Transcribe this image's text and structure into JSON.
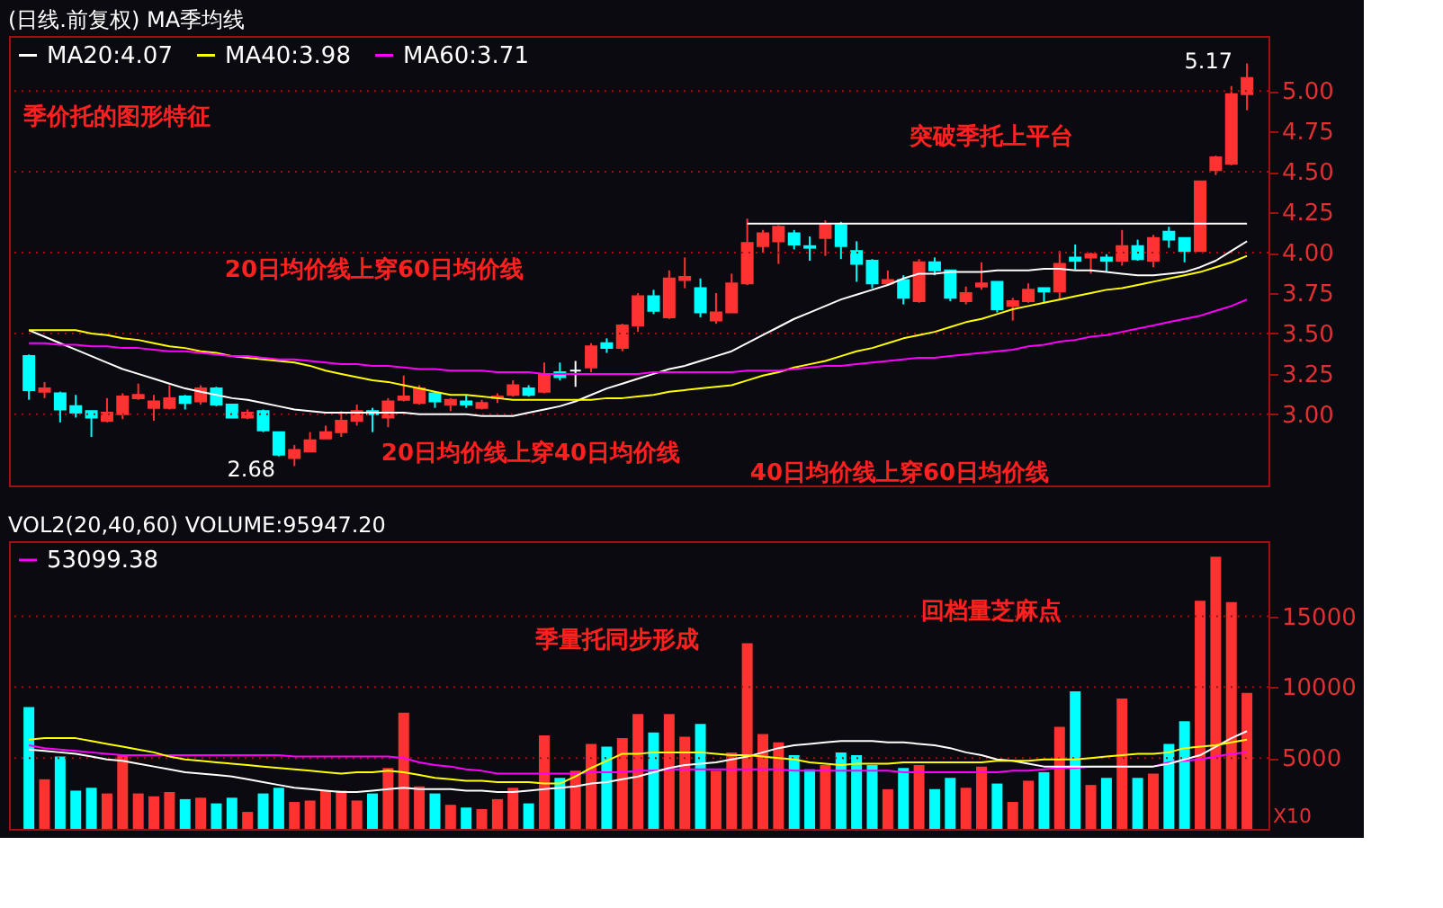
{
  "chart_data": [
    {
      "type": "candlestick",
      "title": "(日线.前复权) MA季均线",
      "categories": [
        null,
        null,
        null,
        null,
        null,
        null,
        null,
        null,
        null,
        null,
        null,
        null,
        null,
        null,
        null,
        null,
        null,
        null,
        null,
        null,
        null,
        null,
        null,
        null,
        null,
        null,
        null,
        null,
        null,
        null,
        null,
        null,
        null,
        null,
        null,
        null,
        null,
        null,
        null,
        null,
        null,
        null,
        null,
        null,
        null,
        null,
        null,
        null,
        null,
        null,
        null,
        null,
        null,
        null,
        null,
        null,
        null,
        null,
        null,
        null,
        null,
        null,
        null,
        null,
        null,
        null,
        null,
        null,
        null,
        null,
        null,
        null,
        null,
        null,
        null,
        null,
        null,
        null,
        null
      ],
      "ohlc": [
        [
          3.36,
          3.37,
          3.09,
          3.15
        ],
        [
          3.14,
          3.2,
          3.1,
          3.16
        ],
        [
          3.13,
          3.14,
          2.95,
          3.03
        ],
        [
          3.05,
          3.12,
          2.98,
          3.01
        ],
        [
          3.02,
          3.02,
          2.86,
          2.98
        ],
        [
          2.96,
          3.1,
          2.95,
          3.01
        ],
        [
          3.0,
          3.13,
          2.97,
          3.11
        ],
        [
          3.1,
          3.19,
          3.09,
          3.12
        ],
        [
          3.04,
          3.12,
          2.96,
          3.08
        ],
        [
          3.04,
          3.18,
          3.03,
          3.1
        ],
        [
          3.11,
          3.12,
          3.03,
          3.07
        ],
        [
          3.08,
          3.18,
          3.06,
          3.16
        ],
        [
          3.16,
          3.17,
          3.05,
          3.06
        ],
        [
          3.06,
          3.06,
          2.98,
          2.98
        ],
        [
          2.98,
          3.03,
          2.97,
          3.01
        ],
        [
          3.02,
          3.03,
          2.89,
          2.9
        ],
        [
          2.89,
          2.89,
          2.74,
          2.75
        ],
        [
          2.73,
          2.81,
          2.68,
          2.78
        ],
        [
          2.77,
          2.89,
          2.77,
          2.84
        ],
        [
          2.85,
          2.93,
          2.85,
          2.89
        ],
        [
          2.89,
          3.02,
          2.86,
          2.96
        ],
        [
          2.96,
          3.06,
          2.93,
          3.02
        ],
        [
          3.02,
          3.04,
          2.89,
          3.0
        ],
        [
          2.98,
          3.1,
          2.92,
          3.08
        ],
        [
          3.09,
          3.24,
          3.08,
          3.11
        ],
        [
          3.07,
          3.18,
          3.06,
          3.16
        ],
        [
          3.13,
          3.14,
          3.04,
          3.08
        ],
        [
          3.06,
          3.1,
          3.02,
          3.09
        ],
        [
          3.08,
          3.12,
          3.04,
          3.06
        ],
        [
          3.04,
          3.09,
          3.03,
          3.07
        ],
        [
          3.1,
          3.13,
          3.07,
          3.11
        ],
        [
          3.12,
          3.21,
          3.11,
          3.18
        ],
        [
          3.16,
          3.18,
          3.11,
          3.12
        ],
        [
          3.14,
          3.32,
          3.13,
          3.25
        ],
        [
          3.26,
          3.32,
          3.21,
          3.23
        ],
        [
          3.27,
          3.33,
          3.17,
          3.27
        ],
        [
          3.29,
          3.44,
          3.26,
          3.42
        ],
        [
          3.44,
          3.47,
          3.38,
          3.41
        ],
        [
          3.41,
          3.56,
          3.39,
          3.55
        ],
        [
          3.55,
          3.75,
          3.51,
          3.73
        ],
        [
          3.73,
          3.77,
          3.62,
          3.64
        ],
        [
          3.6,
          3.89,
          3.59,
          3.84
        ],
        [
          3.83,
          3.97,
          3.78,
          3.85
        ],
        [
          3.78,
          3.84,
          3.6,
          3.63
        ],
        [
          3.58,
          3.75,
          3.56,
          3.63
        ],
        [
          3.63,
          3.87,
          3.63,
          3.81
        ],
        [
          3.81,
          4.21,
          3.8,
          4.06
        ],
        [
          4.04,
          4.14,
          4.0,
          4.12
        ],
        [
          4.07,
          4.17,
          3.93,
          4.16
        ],
        [
          4.12,
          4.14,
          4.02,
          4.05
        ],
        [
          4.04,
          4.1,
          3.95,
          4.03
        ],
        [
          4.09,
          4.2,
          3.98,
          4.17
        ],
        [
          4.17,
          4.19,
          3.96,
          4.04
        ],
        [
          4.01,
          4.07,
          3.82,
          3.93
        ],
        [
          3.95,
          3.96,
          3.78,
          3.81
        ],
        [
          3.81,
          3.89,
          3.8,
          3.83
        ],
        [
          3.83,
          3.86,
          3.68,
          3.72
        ],
        [
          3.7,
          3.96,
          3.69,
          3.94
        ],
        [
          3.94,
          3.97,
          3.86,
          3.89
        ],
        [
          3.89,
          3.89,
          3.7,
          3.72
        ],
        [
          3.7,
          3.79,
          3.68,
          3.75
        ],
        [
          3.79,
          3.94,
          3.77,
          3.81
        ],
        [
          3.82,
          3.82,
          3.63,
          3.65
        ],
        [
          3.67,
          3.72,
          3.58,
          3.7
        ],
        [
          3.7,
          3.81,
          3.69,
          3.77
        ],
        [
          3.78,
          3.78,
          3.69,
          3.76
        ],
        [
          3.76,
          4.01,
          3.71,
          3.93
        ],
        [
          3.97,
          4.05,
          3.89,
          3.95
        ],
        [
          3.97,
          4.0,
          3.87,
          3.99
        ],
        [
          3.97,
          3.99,
          3.88,
          3.95
        ],
        [
          3.95,
          4.14,
          3.92,
          4.04
        ],
        [
          4.04,
          4.08,
          3.95,
          3.96
        ],
        [
          3.95,
          4.11,
          3.91,
          4.09
        ],
        [
          4.13,
          4.16,
          4.03,
          4.08
        ],
        [
          4.09,
          4.09,
          3.94,
          4.01
        ],
        [
          4.01,
          4.44,
          4.01,
          4.44
        ],
        [
          4.51,
          4.6,
          4.48,
          4.59
        ],
        [
          4.55,
          5.03,
          4.54,
          4.98
        ],
        [
          4.98,
          5.17,
          4.88,
          5.08
        ]
      ],
      "colors": [
        "#00ffff",
        "#ff3232",
        "#00ffff",
        "#00ffff",
        "#00ffff",
        "#ff3232",
        "#ff3232",
        "#ff3232",
        "#ff3232",
        "#ff3232",
        "#00ffff",
        "#ff3232",
        "#00ffff",
        "#00ffff",
        "#ff3232",
        "#00ffff",
        "#00ffff",
        "#ff3232",
        "#ff3232",
        "#ff3232",
        "#ff3232",
        "#ff3232",
        "#00ffff",
        "#ff3232",
        "#ff3232",
        "#ff3232",
        "#00ffff",
        "#ff3232",
        "#00ffff",
        "#ff3232",
        "#ff3232",
        "#ff3232",
        "#00ffff",
        "#ff3232",
        "#00ffff",
        "#ffffff",
        "#ff3232",
        "#00ffff",
        "#ff3232",
        "#ff3232",
        "#00ffff",
        "#ff3232",
        "#ff3232",
        "#00ffff",
        "#ff3232",
        "#ff3232",
        "#ff3232",
        "#ff3232",
        "#ff3232",
        "#00ffff",
        "#00ffff",
        "#ff3232",
        "#00ffff",
        "#00ffff",
        "#00ffff",
        "#ff3232",
        "#00ffff",
        "#ff3232",
        "#00ffff",
        "#00ffff",
        "#ff3232",
        "#ff3232",
        "#00ffff",
        "#ff3232",
        "#ff3232",
        "#00ffff",
        "#ff3232",
        "#00ffff",
        "#ff3232",
        "#00ffff",
        "#ff3232",
        "#00ffff",
        "#ff3232",
        "#00ffff",
        "#00ffff",
        "#ff3232",
        "#ff3232",
        "#ff3232",
        "#ff3232"
      ],
      "series": [
        {
          "name": "MA20:4.07",
          "type": "line",
          "color": "#ffffff",
          "values": [
            3.52,
            3.48,
            3.44,
            3.4,
            3.36,
            3.32,
            3.28,
            3.25,
            3.22,
            3.19,
            3.16,
            3.14,
            3.12,
            3.1,
            3.09,
            3.07,
            3.05,
            3.03,
            3.02,
            3.01,
            3.01,
            3.01,
            3.01,
            3.01,
            3.01,
            3.0,
            3.0,
            3.0,
            3.0,
            2.99,
            2.99,
            2.99,
            3.01,
            3.03,
            3.05,
            3.08,
            3.12,
            3.16,
            3.19,
            3.22,
            3.25,
            3.28,
            3.3,
            3.33,
            3.36,
            3.39,
            3.44,
            3.49,
            3.54,
            3.59,
            3.63,
            3.67,
            3.71,
            3.74,
            3.77,
            3.8,
            3.84,
            3.87,
            3.87,
            3.88,
            3.88,
            3.88,
            3.89,
            3.89,
            3.89,
            3.9,
            3.9,
            3.89,
            3.89,
            3.88,
            3.87,
            3.86,
            3.86,
            3.87,
            3.88,
            3.91,
            3.95,
            4.01,
            4.07
          ]
        },
        {
          "name": "MA40:3.98",
          "type": "line",
          "color": "#ffff00",
          "values": [
            3.52,
            3.52,
            3.52,
            3.52,
            3.5,
            3.49,
            3.47,
            3.46,
            3.44,
            3.42,
            3.41,
            3.39,
            3.38,
            3.36,
            3.35,
            3.34,
            3.33,
            3.32,
            3.3,
            3.27,
            3.25,
            3.23,
            3.21,
            3.2,
            3.18,
            3.16,
            3.14,
            3.12,
            3.12,
            3.11,
            3.1,
            3.09,
            3.09,
            3.09,
            3.09,
            3.09,
            3.09,
            3.1,
            3.1,
            3.11,
            3.12,
            3.14,
            3.15,
            3.16,
            3.17,
            3.18,
            3.21,
            3.24,
            3.26,
            3.29,
            3.31,
            3.33,
            3.36,
            3.39,
            3.41,
            3.44,
            3.47,
            3.49,
            3.51,
            3.54,
            3.57,
            3.59,
            3.62,
            3.65,
            3.67,
            3.69,
            3.71,
            3.73,
            3.75,
            3.77,
            3.78,
            3.8,
            3.82,
            3.84,
            3.86,
            3.88,
            3.91,
            3.94,
            3.98
          ]
        },
        {
          "name": "MA60:3.71",
          "type": "line",
          "color": "#ff00ff",
          "values": [
            3.44,
            3.44,
            3.43,
            3.43,
            3.42,
            3.42,
            3.41,
            3.41,
            3.4,
            3.39,
            3.39,
            3.38,
            3.37,
            3.36,
            3.36,
            3.35,
            3.34,
            3.34,
            3.33,
            3.32,
            3.31,
            3.31,
            3.3,
            3.3,
            3.29,
            3.28,
            3.28,
            3.27,
            3.27,
            3.27,
            3.26,
            3.26,
            3.26,
            3.25,
            3.25,
            3.25,
            3.25,
            3.25,
            3.25,
            3.25,
            3.26,
            3.26,
            3.26,
            3.26,
            3.26,
            3.26,
            3.27,
            3.27,
            3.27,
            3.28,
            3.29,
            3.3,
            3.3,
            3.31,
            3.32,
            3.33,
            3.34,
            3.35,
            3.35,
            3.36,
            3.37,
            3.38,
            3.39,
            3.4,
            3.42,
            3.43,
            3.45,
            3.46,
            3.48,
            3.49,
            3.51,
            3.53,
            3.55,
            3.57,
            3.59,
            3.61,
            3.64,
            3.67,
            3.71
          ]
        },
        {
          "type": "line",
          "color": "#ffffff",
          "values": [
            null,
            null,
            null,
            null,
            null,
            null,
            null,
            null,
            null,
            null,
            null,
            null,
            null,
            null,
            null,
            null,
            null,
            null,
            null,
            null,
            null,
            null,
            null,
            null,
            null,
            null,
            null,
            null,
            null,
            null,
            null,
            null,
            null,
            null,
            null,
            null,
            null,
            null,
            null,
            null,
            null,
            null,
            null,
            null,
            null,
            null,
            4.18,
            4.18,
            4.18,
            4.18,
            4.18,
            4.18,
            4.18,
            4.18,
            4.18,
            4.18,
            4.18,
            4.18,
            4.18,
            4.18,
            4.18,
            4.18,
            4.18,
            4.18,
            4.18,
            4.18,
            4.18,
            4.18,
            4.18,
            4.18,
            4.18,
            4.18,
            4.18,
            4.18,
            4.18,
            4.18,
            4.18,
            4.18,
            4.18
          ]
        }
      ],
      "ylim": [
        2.56,
        5.34
      ],
      "yticks": [
        {
          "value": 3.0,
          "label": "3.00"
        },
        {
          "value": 3.25,
          "label": "3.25"
        },
        {
          "value": 3.5,
          "label": "3.50"
        },
        {
          "value": 3.75,
          "label": "3.75"
        },
        {
          "value": 4.0,
          "label": "4.00"
        },
        {
          "value": 4.25,
          "label": "4.25"
        },
        {
          "value": 4.5,
          "label": "4.50"
        },
        {
          "value": 4.75,
          "label": "4.75"
        },
        {
          "value": 5.0,
          "label": "5.00"
        }
      ],
      "tick_labels": "y",
      "legend": "top left",
      "ref_lines": [
        {
          "axis": "y",
          "value": 3.0,
          "color": "#a01010",
          "line_style": "dotted"
        },
        {
          "axis": "y",
          "value": 3.5,
          "color": "#a01010",
          "line_style": "dotted"
        },
        {
          "axis": "y",
          "value": 4.0,
          "color": "#a01010",
          "line_style": "dotted"
        },
        {
          "axis": "y",
          "value": 4.5,
          "color": "#a01010",
          "line_style": "dotted"
        },
        {
          "axis": "y",
          "value": 5.0,
          "color": "#a01010",
          "line_style": "dotted"
        }
      ],
      "line_style": "solid",
      "annotations": [
        "季价托的图形特征",
        "20日均价线上穿60日均价线",
        "40日均价线上穿60日均价线",
        "20日均价线上穿40日均价线",
        "突破季托上平台",
        "2.68",
        "5.17"
      ]
    },
    {
      "type": "bar",
      "title": "VOL2(20,40,60) VOLUME:95947.20",
      "ylabel": "X10",
      "categories": [
        null,
        null,
        null,
        null,
        null,
        null,
        null,
        null,
        null,
        null,
        null,
        null,
        null,
        null,
        null,
        null,
        null,
        null,
        null,
        null,
        null,
        null,
        null,
        null,
        null,
        null,
        null,
        null,
        null,
        null,
        null,
        null,
        null,
        null,
        null,
        null,
        null,
        null,
        null,
        null,
        null,
        null,
        null,
        null,
        null,
        null,
        null,
        null,
        null,
        null,
        null,
        null,
        null,
        null,
        null,
        null,
        null,
        null,
        null,
        null,
        null,
        null,
        null,
        null,
        null,
        null,
        null,
        null,
        null,
        null,
        null,
        null,
        null,
        null,
        null,
        null,
        null,
        null,
        null
      ],
      "values": [
        8600,
        3500,
        5100,
        2700,
        2900,
        2500,
        5200,
        2500,
        2300,
        2600,
        2100,
        2200,
        1800,
        2200,
        1200,
        2500,
        2900,
        1900,
        2000,
        2700,
        2700,
        2000,
        2500,
        4300,
        8200,
        3000,
        2500,
        1700,
        1500,
        1400,
        2100,
        2900,
        1800,
        6600,
        3600,
        4100,
        6000,
        5800,
        6400,
        8100,
        6800,
        8100,
        6500,
        7400,
        4100,
        5400,
        13100,
        6700,
        6100,
        5200,
        4200,
        4500,
        5400,
        5200,
        4500,
        2800,
        4300,
        4500,
        2800,
        3600,
        2900,
        4400,
        3200,
        1900,
        3400,
        4000,
        7200,
        9700,
        3100,
        3600,
        9200,
        3600,
        3900,
        6000,
        7600,
        16100,
        19200,
        16000,
        9600
      ],
      "colors": [
        "#00ffff",
        "#ff3232",
        "#00ffff",
        "#00ffff",
        "#00ffff",
        "#ff3232",
        "#ff3232",
        "#ff3232",
        "#ff3232",
        "#ff3232",
        "#00ffff",
        "#ff3232",
        "#00ffff",
        "#00ffff",
        "#ff3232",
        "#00ffff",
        "#00ffff",
        "#ff3232",
        "#ff3232",
        "#ff3232",
        "#ff3232",
        "#ff3232",
        "#00ffff",
        "#ff3232",
        "#ff3232",
        "#ff3232",
        "#00ffff",
        "#ff3232",
        "#00ffff",
        "#ff3232",
        "#ff3232",
        "#ff3232",
        "#00ffff",
        "#ff3232",
        "#00ffff",
        "#ff3232",
        "#ff3232",
        "#00ffff",
        "#ff3232",
        "#ff3232",
        "#00ffff",
        "#ff3232",
        "#ff3232",
        "#00ffff",
        "#ff3232",
        "#ff3232",
        "#ff3232",
        "#ff3232",
        "#ff3232",
        "#00ffff",
        "#00ffff",
        "#ff3232",
        "#00ffff",
        "#00ffff",
        "#00ffff",
        "#ff3232",
        "#00ffff",
        "#ff3232",
        "#00ffff",
        "#00ffff",
        "#ff3232",
        "#ff3232",
        "#00ffff",
        "#ff3232",
        "#ff3232",
        "#00ffff",
        "#ff3232",
        "#00ffff",
        "#ff3232",
        "#00ffff",
        "#ff3232",
        "#00ffff",
        "#ff3232",
        "#00ffff",
        "#00ffff",
        "#ff3232",
        "#ff3232",
        "#ff3232",
        "#ff3232"
      ],
      "series": [
        {
          "type": "line",
          "color": "#ffffff",
          "values": [
            5600,
            5500,
            5400,
            5300,
            5100,
            4900,
            4800,
            4600,
            4400,
            4200,
            4000,
            3900,
            3800,
            3700,
            3500,
            3300,
            3100,
            2900,
            2800,
            2700,
            2600,
            2600,
            2700,
            2800,
            2900,
            2800,
            2800,
            2800,
            2700,
            2700,
            2600,
            2600,
            2700,
            2800,
            2900,
            3000,
            3200,
            3300,
            3500,
            3700,
            4000,
            4300,
            4500,
            4600,
            4700,
            4900,
            5100,
            5400,
            5700,
            5900,
            6000,
            6100,
            6200,
            6200,
            6200,
            6100,
            6100,
            6000,
            5900,
            5700,
            5400,
            5200,
            4900,
            4800,
            4600,
            4400,
            4400,
            4400,
            4400,
            4400,
            4400,
            4400,
            4400,
            4600,
            4900,
            5200,
            5800,
            6400,
            6900
          ]
        },
        {
          "type": "line",
          "color": "#ffff00",
          "values": [
            6300,
            6400,
            6400,
            6400,
            6200,
            6000,
            5800,
            5600,
            5400,
            5100,
            4900,
            4800,
            4700,
            4600,
            4500,
            4400,
            4300,
            4200,
            4100,
            4000,
            3900,
            4000,
            4000,
            4100,
            4000,
            3800,
            3600,
            3500,
            3400,
            3400,
            3300,
            3300,
            3300,
            3200,
            3200,
            3700,
            4300,
            4800,
            5300,
            5300,
            5400,
            5400,
            5400,
            5400,
            5300,
            5200,
            5200,
            5100,
            5000,
            4900,
            4700,
            4600,
            4500,
            4600,
            4600,
            4600,
            4700,
            4700,
            4700,
            4700,
            4700,
            4700,
            4800,
            4800,
            4800,
            4900,
            4900,
            4900,
            5000,
            5100,
            5200,
            5300,
            5300,
            5400,
            5700,
            5800,
            5900,
            6100,
            6300
          ]
        },
        {
          "name": "53099.38",
          "type": "line",
          "color": "#ff00ff",
          "values": [
            5900,
            5700,
            5600,
            5500,
            5400,
            5300,
            5200,
            5200,
            5200,
            5200,
            5200,
            5200,
            5200,
            5200,
            5200,
            5200,
            5200,
            5100,
            5100,
            5100,
            5100,
            5100,
            5100,
            5100,
            5000,
            4700,
            4500,
            4400,
            4200,
            4100,
            3900,
            3900,
            3900,
            3900,
            3900,
            3900,
            4000,
            4000,
            4000,
            4100,
            4100,
            4200,
            4200,
            4200,
            4200,
            4200,
            4200,
            4200,
            4200,
            4100,
            4100,
            4100,
            4100,
            4100,
            4100,
            4100,
            4000,
            4000,
            4000,
            4000,
            4000,
            4000,
            4000,
            4100,
            4100,
            4200,
            4300,
            4300,
            4400,
            4400,
            4400,
            4400,
            4400,
            4700,
            4800,
            4900,
            5100,
            5300,
            5400
          ]
        }
      ],
      "ylim": [
        0,
        20300
      ],
      "yticks": [
        5000,
        10000,
        15000
      ],
      "tick_labels": "y",
      "legend": "top left",
      "line_style": "solid",
      "ref_lines": [
        {
          "axis": "y",
          "value": 5000,
          "color": "#a01010",
          "line_style": "dotted"
        },
        {
          "axis": "y",
          "value": 10000,
          "color": "#a01010",
          "line_style": "dotted"
        },
        {
          "axis": "y",
          "value": 15000,
          "color": "#a01010",
          "line_style": "dotted"
        }
      ],
      "annotations": [
        "季量托同步形成",
        "回档量芝麻点"
      ]
    }
  ]
}
